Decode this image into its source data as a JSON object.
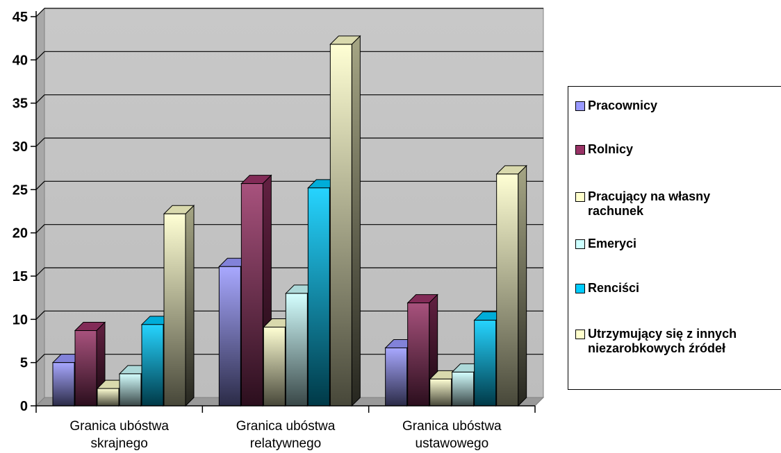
{
  "chart_data": {
    "type": "bar",
    "categories": [
      "Granica ubóstwa skrajnego",
      "Granica ubóstwa relatywnego",
      "Granica ubóstwa ustawowego"
    ],
    "category_label_lines": [
      [
        "Granica ubóstwa",
        "skrajnego"
      ],
      [
        "Granica ubóstwa",
        "relatywnego"
      ],
      [
        "Granica ubóstwa",
        "ustawowego"
      ]
    ],
    "series": [
      {
        "name": "Pracownicy",
        "values": [
          5.0,
          16.1,
          6.7
        ],
        "color": "#9999ff"
      },
      {
        "name": "Rolnicy",
        "values": [
          8.7,
          25.7,
          11.9
        ],
        "color": "#993366"
      },
      {
        "name": "Pracujący na własny rachunek",
        "values": [
          2.0,
          9.1,
          3.1
        ],
        "color": "#ffffcc"
      },
      {
        "name": "Emeryci",
        "values": [
          3.7,
          13.0,
          3.9
        ],
        "color": "#ccffff"
      },
      {
        "name": "Renciści",
        "values": [
          9.4,
          25.2,
          9.9
        ],
        "color": "#00ccff"
      },
      {
        "name": "Utrzymujący się z innych niezarobkowych źródeł",
        "values": [
          22.2,
          41.8,
          26.8
        ],
        "color": "#ffffcc"
      }
    ],
    "ylim": [
      0,
      45
    ],
    "yticks": [
      0,
      5,
      10,
      15,
      20,
      25,
      30,
      35,
      40,
      45
    ],
    "title": "",
    "xlabel": "",
    "ylabel": "",
    "grid": true,
    "legend_position": "right",
    "plot_background": "#c0c0c0"
  },
  "legend": {
    "items": [
      {
        "label": "Pracownicy",
        "color": "#9999ff"
      },
      {
        "label": "Rolnicy",
        "color": "#993366"
      },
      {
        "label": "Pracujący na własny\nrachunek",
        "color": "#ffffcc"
      },
      {
        "label": "Emeryci",
        "color": "#ccffff"
      },
      {
        "label": "Renciści",
        "color": "#00ccff"
      },
      {
        "label": "Utrzymujący się z innych\nniezarobkowych źródeł",
        "color": "#ffffcc"
      }
    ]
  }
}
